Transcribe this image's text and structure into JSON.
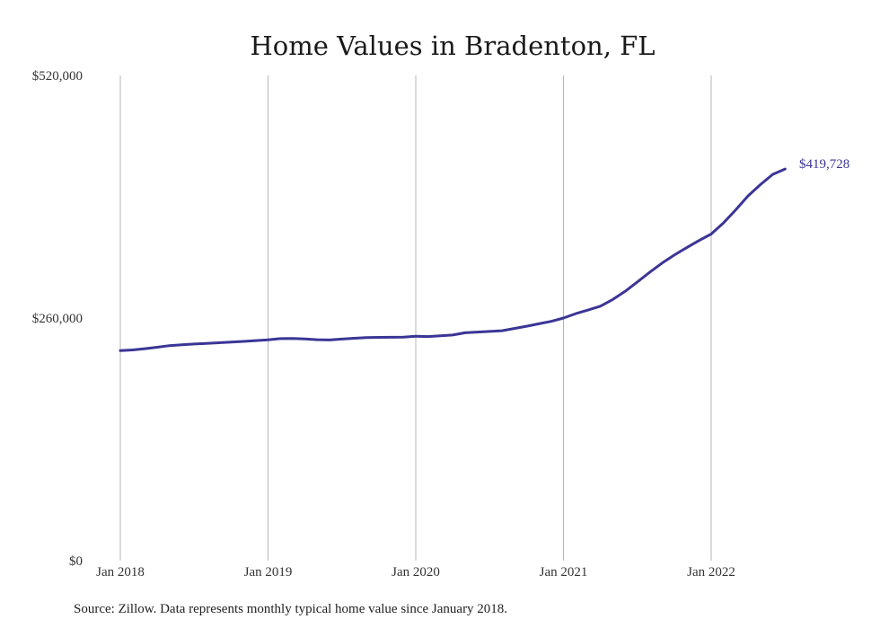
{
  "chart_data": {
    "type": "line",
    "title": "Home Values in Bradenton, FL",
    "xlabel": "",
    "ylabel": "",
    "ylim": [
      0,
      520000
    ],
    "yticks": [
      {
        "value": 0,
        "label": "$0"
      },
      {
        "value": 260000,
        "label": "$260,000"
      },
      {
        "value": 520000,
        "label": "$520,000"
      }
    ],
    "xticks": [
      {
        "value": "2018-01",
        "label": "Jan 2018"
      },
      {
        "value": "2019-01",
        "label": "Jan 2019"
      },
      {
        "value": "2020-01",
        "label": "Jan 2020"
      },
      {
        "value": "2021-01",
        "label": "Jan 2021"
      },
      {
        "value": "2022-01",
        "label": "Jan 2022"
      }
    ],
    "grid": {
      "vertical": true,
      "horizontal": false
    },
    "end_label": "$419,728",
    "source": "Source: Zillow. Data represents monthly typical home value since January 2018.",
    "colors": {
      "line": "#3b3596",
      "end_label": "#3b3596",
      "grid": "#b5b5b5"
    },
    "series": [
      {
        "x": [
          "2018-01",
          "2018-02",
          "2018-03",
          "2018-04",
          "2018-05",
          "2018-06",
          "2018-07",
          "2018-08",
          "2018-09",
          "2018-10",
          "2018-11",
          "2018-12",
          "2019-01",
          "2019-02",
          "2019-03",
          "2019-04",
          "2019-05",
          "2019-06",
          "2019-07",
          "2019-08",
          "2019-09",
          "2019-10",
          "2019-11",
          "2019-12",
          "2020-01",
          "2020-02",
          "2020-03",
          "2020-04",
          "2020-05",
          "2020-06",
          "2020-07",
          "2020-08",
          "2020-09",
          "2020-10",
          "2020-11",
          "2020-12",
          "2021-01",
          "2021-02",
          "2021-03",
          "2021-04",
          "2021-05",
          "2021-06",
          "2021-07",
          "2021-08",
          "2021-09",
          "2021-10",
          "2021-11",
          "2021-12",
          "2022-01",
          "2022-02",
          "2022-03",
          "2022-04",
          "2022-05",
          "2022-06",
          "2022-07"
        ],
        "values": [
          225000,
          225800,
          227200,
          228700,
          230400,
          231400,
          232200,
          232800,
          233500,
          234200,
          235000,
          235800,
          236600,
          237900,
          238100,
          237600,
          236800,
          236500,
          237500,
          238300,
          239000,
          239300,
          239400,
          239600,
          240500,
          240200,
          241000,
          241800,
          244200,
          245000,
          245700,
          246400,
          248800,
          251200,
          253800,
          256400,
          260000,
          264700,
          268600,
          272700,
          279800,
          288500,
          298700,
          309000,
          318800,
          327500,
          335400,
          343000,
          350000,
          362000,
          376000,
          391000,
          403000,
          414000,
          419728
        ]
      }
    ]
  }
}
